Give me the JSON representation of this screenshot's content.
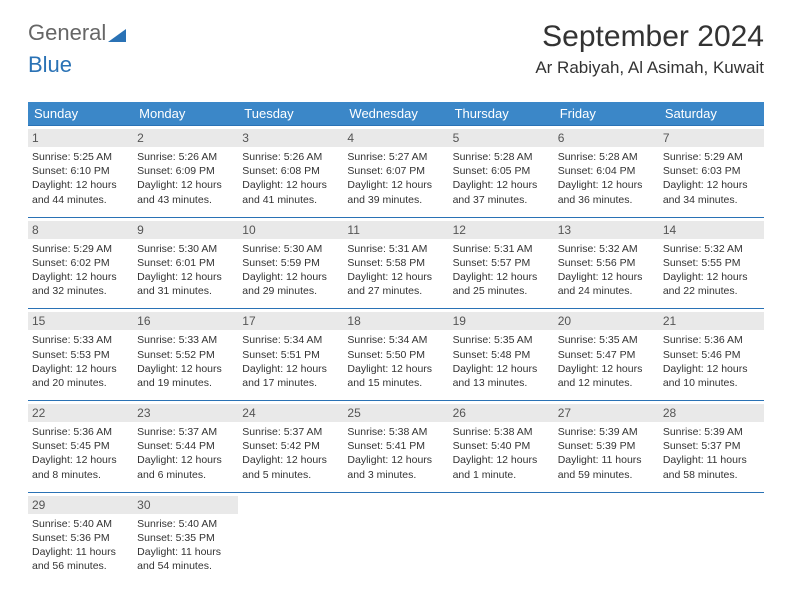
{
  "logo": {
    "part1": "General",
    "part2": "Blue"
  },
  "title": "September 2024",
  "location": "Ar Rabiyah, Al Asimah, Kuwait",
  "colors": {
    "header_bg": "#3b87c8",
    "border": "#2a72b5",
    "daynum_bg": "#e9e9e9",
    "logo_blue": "#2a72b5"
  },
  "weekdays": [
    "Sunday",
    "Monday",
    "Tuesday",
    "Wednesday",
    "Thursday",
    "Friday",
    "Saturday"
  ],
  "weeks": [
    [
      {
        "n": "1",
        "sr": "Sunrise: 5:25 AM",
        "ss": "Sunset: 6:10 PM",
        "dl": "Daylight: 12 hours and 44 minutes."
      },
      {
        "n": "2",
        "sr": "Sunrise: 5:26 AM",
        "ss": "Sunset: 6:09 PM",
        "dl": "Daylight: 12 hours and 43 minutes."
      },
      {
        "n": "3",
        "sr": "Sunrise: 5:26 AM",
        "ss": "Sunset: 6:08 PM",
        "dl": "Daylight: 12 hours and 41 minutes."
      },
      {
        "n": "4",
        "sr": "Sunrise: 5:27 AM",
        "ss": "Sunset: 6:07 PM",
        "dl": "Daylight: 12 hours and 39 minutes."
      },
      {
        "n": "5",
        "sr": "Sunrise: 5:28 AM",
        "ss": "Sunset: 6:05 PM",
        "dl": "Daylight: 12 hours and 37 minutes."
      },
      {
        "n": "6",
        "sr": "Sunrise: 5:28 AM",
        "ss": "Sunset: 6:04 PM",
        "dl": "Daylight: 12 hours and 36 minutes."
      },
      {
        "n": "7",
        "sr": "Sunrise: 5:29 AM",
        "ss": "Sunset: 6:03 PM",
        "dl": "Daylight: 12 hours and 34 minutes."
      }
    ],
    [
      {
        "n": "8",
        "sr": "Sunrise: 5:29 AM",
        "ss": "Sunset: 6:02 PM",
        "dl": "Daylight: 12 hours and 32 minutes."
      },
      {
        "n": "9",
        "sr": "Sunrise: 5:30 AM",
        "ss": "Sunset: 6:01 PM",
        "dl": "Daylight: 12 hours and 31 minutes."
      },
      {
        "n": "10",
        "sr": "Sunrise: 5:30 AM",
        "ss": "Sunset: 5:59 PM",
        "dl": "Daylight: 12 hours and 29 minutes."
      },
      {
        "n": "11",
        "sr": "Sunrise: 5:31 AM",
        "ss": "Sunset: 5:58 PM",
        "dl": "Daylight: 12 hours and 27 minutes."
      },
      {
        "n": "12",
        "sr": "Sunrise: 5:31 AM",
        "ss": "Sunset: 5:57 PM",
        "dl": "Daylight: 12 hours and 25 minutes."
      },
      {
        "n": "13",
        "sr": "Sunrise: 5:32 AM",
        "ss": "Sunset: 5:56 PM",
        "dl": "Daylight: 12 hours and 24 minutes."
      },
      {
        "n": "14",
        "sr": "Sunrise: 5:32 AM",
        "ss": "Sunset: 5:55 PM",
        "dl": "Daylight: 12 hours and 22 minutes."
      }
    ],
    [
      {
        "n": "15",
        "sr": "Sunrise: 5:33 AM",
        "ss": "Sunset: 5:53 PM",
        "dl": "Daylight: 12 hours and 20 minutes."
      },
      {
        "n": "16",
        "sr": "Sunrise: 5:33 AM",
        "ss": "Sunset: 5:52 PM",
        "dl": "Daylight: 12 hours and 19 minutes."
      },
      {
        "n": "17",
        "sr": "Sunrise: 5:34 AM",
        "ss": "Sunset: 5:51 PM",
        "dl": "Daylight: 12 hours and 17 minutes."
      },
      {
        "n": "18",
        "sr": "Sunrise: 5:34 AM",
        "ss": "Sunset: 5:50 PM",
        "dl": "Daylight: 12 hours and 15 minutes."
      },
      {
        "n": "19",
        "sr": "Sunrise: 5:35 AM",
        "ss": "Sunset: 5:48 PM",
        "dl": "Daylight: 12 hours and 13 minutes."
      },
      {
        "n": "20",
        "sr": "Sunrise: 5:35 AM",
        "ss": "Sunset: 5:47 PM",
        "dl": "Daylight: 12 hours and 12 minutes."
      },
      {
        "n": "21",
        "sr": "Sunrise: 5:36 AM",
        "ss": "Sunset: 5:46 PM",
        "dl": "Daylight: 12 hours and 10 minutes."
      }
    ],
    [
      {
        "n": "22",
        "sr": "Sunrise: 5:36 AM",
        "ss": "Sunset: 5:45 PM",
        "dl": "Daylight: 12 hours and 8 minutes."
      },
      {
        "n": "23",
        "sr": "Sunrise: 5:37 AM",
        "ss": "Sunset: 5:44 PM",
        "dl": "Daylight: 12 hours and 6 minutes."
      },
      {
        "n": "24",
        "sr": "Sunrise: 5:37 AM",
        "ss": "Sunset: 5:42 PM",
        "dl": "Daylight: 12 hours and 5 minutes."
      },
      {
        "n": "25",
        "sr": "Sunrise: 5:38 AM",
        "ss": "Sunset: 5:41 PM",
        "dl": "Daylight: 12 hours and 3 minutes."
      },
      {
        "n": "26",
        "sr": "Sunrise: 5:38 AM",
        "ss": "Sunset: 5:40 PM",
        "dl": "Daylight: 12 hours and 1 minute."
      },
      {
        "n": "27",
        "sr": "Sunrise: 5:39 AM",
        "ss": "Sunset: 5:39 PM",
        "dl": "Daylight: 11 hours and 59 minutes."
      },
      {
        "n": "28",
        "sr": "Sunrise: 5:39 AM",
        "ss": "Sunset: 5:37 PM",
        "dl": "Daylight: 11 hours and 58 minutes."
      }
    ],
    [
      {
        "n": "29",
        "sr": "Sunrise: 5:40 AM",
        "ss": "Sunset: 5:36 PM",
        "dl": "Daylight: 11 hours and 56 minutes."
      },
      {
        "n": "30",
        "sr": "Sunrise: 5:40 AM",
        "ss": "Sunset: 5:35 PM",
        "dl": "Daylight: 11 hours and 54 minutes."
      },
      {
        "empty": true
      },
      {
        "empty": true
      },
      {
        "empty": true
      },
      {
        "empty": true
      },
      {
        "empty": true
      }
    ]
  ]
}
